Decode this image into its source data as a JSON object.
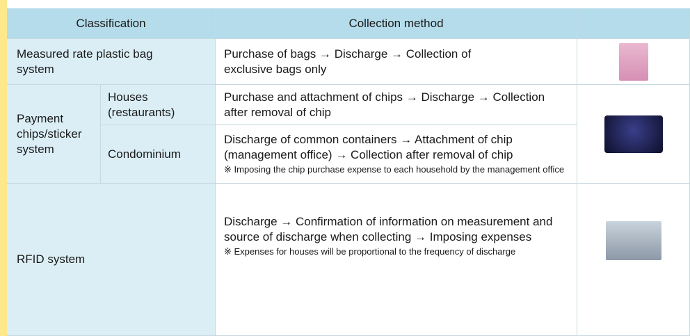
{
  "table": {
    "header": [
      "Classification",
      "Collection method"
    ],
    "rows": [
      {
        "classification": "Measured rate plastic bag system",
        "method": "Purchase of bags → Discharge → Collection of exclusive bags only"
      },
      {
        "classification": "Payment chips/sticker system",
        "subrows": [
          {
            "type": "Houses (restaurants)",
            "method": "Purchase and attachment of chips → Discharge → Collection after removal of chip"
          },
          {
            "type": "Condominium",
            "method": "Discharge of common containers → Attachment of chip (management office) → Collection after removal of chip",
            "note": "※ Imposing the chip purchase expense to each household by the management office"
          }
        ]
      },
      {
        "classification": "RFID system",
        "method": "Discharge → Confirmation of information on measurement and source of discharge when collecting → Imposing expenses",
        "note": "※ Expenses for houses will be proportional to the frequency of discharge"
      }
    ]
  }
}
